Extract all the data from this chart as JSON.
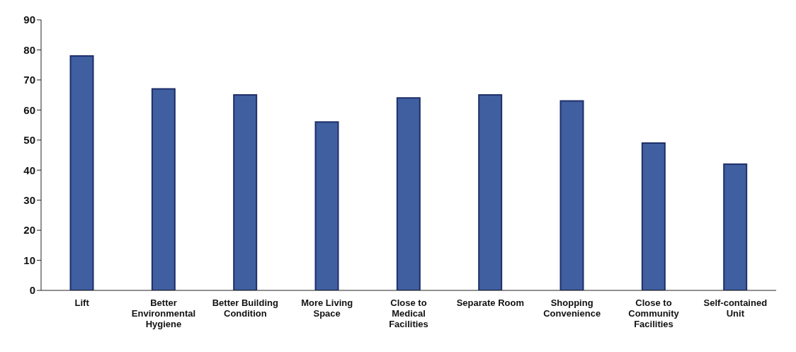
{
  "chart_data": {
    "type": "bar",
    "categories": [
      "Lift",
      "Better Environmental Hygiene",
      "Better Building Condition",
      "More Living Space",
      "Close to Medical Facilities",
      "Separate Room",
      "Shopping Convenience",
      "Close to Community Facilities",
      "Self-contained Unit"
    ],
    "values": [
      78,
      67,
      65,
      56,
      64,
      65,
      63,
      49,
      42
    ],
    "color": "#3f5fa0",
    "ylim": [
      0,
      90
    ],
    "yticks": [
      0,
      10,
      20,
      30,
      40,
      50,
      60,
      70,
      80,
      90
    ],
    "grid": false
  }
}
